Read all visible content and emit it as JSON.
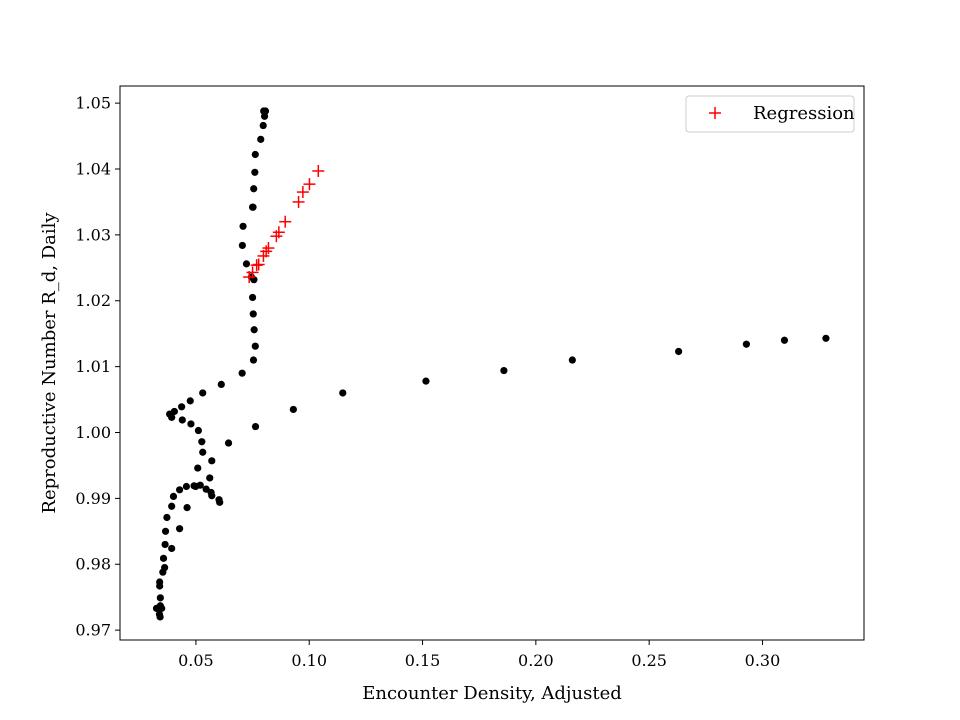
{
  "chart_data": {
    "type": "scatter",
    "title": "",
    "xlabel": "Encounter Density, Adjusted",
    "ylabel": "Reproductive Number R_d, Daily",
    "xlim": [
      0.0165,
      0.3448
    ],
    "ylim": [
      0.9685,
      1.0526
    ],
    "xticks": [
      0.05,
      0.1,
      0.15,
      0.2,
      0.25,
      0.3
    ],
    "xtick_labels": [
      "0.05",
      "0.10",
      "0.15",
      "0.20",
      "0.25",
      "0.30"
    ],
    "yticks": [
      0.97,
      0.98,
      0.99,
      1.0,
      1.01,
      1.02,
      1.03,
      1.04,
      1.05
    ],
    "ytick_labels": [
      "0.97",
      "0.98",
      "0.99",
      "1.00",
      "1.01",
      "1.02",
      "1.03",
      "1.04",
      "1.05"
    ],
    "grid": false,
    "legend_position": "top-right",
    "legend": [
      "Regression"
    ],
    "series": [
      {
        "marker": "dot",
        "color": "#000000",
        "points": [
          [
            0.0799,
            1.0488
          ],
          [
            0.0807,
            1.0488
          ],
          [
            0.0803,
            1.048
          ],
          [
            0.0797,
            1.0466
          ],
          [
            0.0786,
            1.0445
          ],
          [
            0.0762,
            1.0422
          ],
          [
            0.076,
            1.0395
          ],
          [
            0.0755,
            1.037
          ],
          [
            0.0752,
            1.0342
          ],
          [
            0.075,
            1.0342
          ],
          [
            0.0708,
            1.0313
          ],
          [
            0.0705,
            1.0284
          ],
          [
            0.0723,
            1.0256
          ],
          [
            0.0745,
            1.0236
          ],
          [
            0.0756,
            1.0232
          ],
          [
            0.075,
            1.0205
          ],
          [
            0.0753,
            1.018
          ],
          [
            0.0757,
            1.0156
          ],
          [
            0.0762,
            1.0131
          ],
          [
            0.0754,
            1.011
          ],
          [
            0.0704,
            1.009
          ],
          [
            0.0612,
            1.0073
          ],
          [
            0.053,
            1.006
          ],
          [
            0.0475,
            1.0048
          ],
          [
            0.0437,
            1.0039
          ],
          [
            0.0405,
            1.0032
          ],
          [
            0.0384,
            1.0028
          ],
          [
            0.0393,
            1.0023
          ],
          [
            0.044,
            1.0019
          ],
          [
            0.0478,
            1.0013
          ],
          [
            0.0511,
            1.0003
          ],
          [
            0.0526,
            0.9986
          ],
          [
            0.053,
            0.997
          ],
          [
            0.057,
            0.9957
          ],
          [
            0.0508,
            0.9946
          ],
          [
            0.0561,
            0.9931
          ],
          [
            0.0519,
            0.992
          ],
          [
            0.0492,
            0.9919
          ],
          [
            0.0499,
            0.9918
          ],
          [
            0.0458,
            0.9918
          ],
          [
            0.0428,
            0.9913
          ],
          [
            0.0545,
            0.9914
          ],
          [
            0.0567,
            0.9909
          ],
          [
            0.057,
            0.9904
          ],
          [
            0.0602,
            0.9898
          ],
          [
            0.0605,
            0.9894
          ],
          [
            0.0401,
            0.9903
          ],
          [
            0.0393,
            0.9888
          ],
          [
            0.0461,
            0.9886
          ],
          [
            0.0372,
            0.9871
          ],
          [
            0.0428,
            0.9854
          ],
          [
            0.0366,
            0.985
          ],
          [
            0.0364,
            0.983
          ],
          [
            0.0393,
            0.9824
          ],
          [
            0.0357,
            0.9809
          ],
          [
            0.0362,
            0.9795
          ],
          [
            0.0354,
            0.9788
          ],
          [
            0.034,
            0.9773
          ],
          [
            0.034,
            0.9767
          ],
          [
            0.0343,
            0.9749
          ],
          [
            0.0343,
            0.9737
          ],
          [
            0.0326,
            0.9733
          ],
          [
            0.0349,
            0.9733
          ],
          [
            0.0339,
            0.9724
          ],
          [
            0.0342,
            0.972
          ],
          [
            0.0763,
            1.0009
          ],
          [
            0.0644,
            0.9984
          ],
          [
            0.093,
            1.0035
          ],
          [
            0.1148,
            1.006
          ],
          [
            0.1515,
            1.0078
          ],
          [
            0.1859,
            1.0094
          ],
          [
            0.2161,
            1.011
          ],
          [
            0.263,
            1.0123
          ],
          [
            0.2929,
            1.0134
          ],
          [
            0.3097,
            1.014
          ],
          [
            0.328,
            1.0143
          ]
        ]
      },
      {
        "name": "Regression",
        "marker": "plus",
        "color": "#ff0000",
        "points": [
          [
            0.0735,
            1.0236
          ],
          [
            0.075,
            1.0243
          ],
          [
            0.0768,
            1.0254
          ],
          [
            0.0777,
            1.0255
          ],
          [
            0.0798,
            1.0268
          ],
          [
            0.081,
            1.0275
          ],
          [
            0.082,
            1.028
          ],
          [
            0.0855,
            1.0298
          ],
          [
            0.0866,
            1.0304
          ],
          [
            0.0894,
            1.032
          ],
          [
            0.0953,
            1.035
          ],
          [
            0.0972,
            1.0365
          ],
          [
            0.1001,
            1.0377
          ],
          [
            0.104,
            1.0397
          ]
        ]
      }
    ]
  }
}
